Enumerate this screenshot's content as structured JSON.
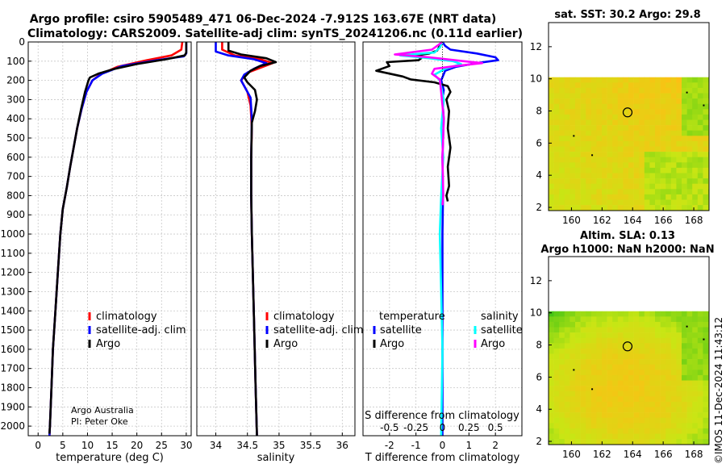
{
  "title_line1": "Argo profile: csiro 5905489_471 06-Dec-2024 -7.912S 163.67E (NRT data)",
  "title_line2": "Climatology: CARS2009. Satellite-adj clim: synTS_20241206.nc (0.11d earlier)",
  "credit": "©IMOS 11-Dec-2024 11:43:12",
  "operator_line1": "Argo Australia",
  "operator_line2": "PI: Peter Oke",
  "colors": {
    "climatology": "#ff0000",
    "satellite": "#0000ff",
    "argo": "#000000",
    "sat_salinity": "#00ffff",
    "argo_salinity": "#ff00ff"
  },
  "chart_data": [
    {
      "type": "line",
      "name": "temperature-profile",
      "xlabel": "temperature (deg C)",
      "xlim": [
        -2,
        31
      ],
      "xticks": [
        "0",
        "5",
        "10",
        "15",
        "20",
        "25",
        "30"
      ],
      "ylim": [
        0,
        2050
      ],
      "yticks": [
        "0",
        "100",
        "200",
        "300",
        "400",
        "500",
        "600",
        "700",
        "800",
        "900",
        "1000",
        "1100",
        "1200",
        "1300",
        "1400",
        "1500",
        "1600",
        "1700",
        "1800",
        "1900",
        "2000"
      ],
      "legend": [
        "climatology",
        "satellite-adj. clim",
        "Argo"
      ],
      "series": [
        {
          "name": "climatology",
          "color": "#ff0000",
          "points": [
            [
              29.2,
              0
            ],
            [
              29.0,
              40
            ],
            [
              27,
              70
            ],
            [
              22,
              95
            ],
            [
              16,
              130
            ],
            [
              12.5,
              170
            ],
            [
              11,
              200
            ],
            [
              9.8,
              260
            ],
            [
              8.8,
              350
            ],
            [
              7.9,
              450
            ],
            [
              7.2,
              550
            ],
            [
              6.5,
              650
            ],
            [
              5.8,
              760
            ],
            [
              5.0,
              870
            ],
            [
              4.5,
              1000
            ],
            [
              4.0,
              1200
            ],
            [
              3.5,
              1400
            ],
            [
              3.0,
              1600
            ],
            [
              2.7,
              1800
            ],
            [
              2.4,
              2000
            ],
            [
              2.3,
              2050
            ]
          ]
        },
        {
          "name": "satellite-adj. clim",
          "color": "#0000ff",
          "points": [
            [
              30.0,
              0
            ],
            [
              30.0,
              60
            ],
            [
              29.5,
              75
            ],
            [
              24,
              95
            ],
            [
              17,
              125
            ],
            [
              13,
              165
            ],
            [
              11,
              200
            ],
            [
              9.8,
              260
            ],
            [
              8.8,
              350
            ],
            [
              7.9,
              450
            ],
            [
              7.2,
              550
            ],
            [
              6.5,
              650
            ],
            [
              5.8,
              760
            ],
            [
              5.0,
              870
            ],
            [
              4.5,
              1000
            ],
            [
              4.0,
              1200
            ],
            [
              3.5,
              1400
            ],
            [
              3.0,
              1600
            ],
            [
              2.7,
              1800
            ],
            [
              2.4,
              2000
            ],
            [
              2.3,
              2050
            ]
          ]
        },
        {
          "name": "Argo",
          "color": "#000000",
          "points": [
            [
              30.0,
              0
            ],
            [
              30.0,
              55
            ],
            [
              29.7,
              70
            ],
            [
              26,
              90
            ],
            [
              20,
              115
            ],
            [
              15.5,
              140
            ],
            [
              12.2,
              165
            ],
            [
              10.5,
              185
            ],
            [
              10.2,
              200
            ],
            [
              9.5,
              260
            ],
            [
              8.7,
              350
            ],
            [
              7.9,
              450
            ],
            [
              7.2,
              550
            ],
            [
              6.5,
              650
            ],
            [
              5.8,
              760
            ],
            [
              5.0,
              870
            ],
            [
              4.5,
              1000
            ],
            [
              4.0,
              1200
            ],
            [
              3.5,
              1400
            ],
            [
              3.0,
              1600
            ],
            [
              2.7,
              1800
            ],
            [
              2.4,
              2000
            ],
            [
              2.3,
              2040
            ]
          ]
        }
      ]
    },
    {
      "type": "line",
      "name": "salinity-profile",
      "xlabel": "salinity",
      "xlim": [
        33.7,
        36.2
      ],
      "xticks": [
        "34",
        "34.5",
        "35",
        "35.5",
        "36"
      ],
      "ylim": [
        0,
        2050
      ],
      "legend": [
        "climatology",
        "satellite-adj. clim.",
        "Argo"
      ],
      "series": [
        {
          "name": "climatology",
          "color": "#ff0000",
          "points": [
            [
              34.1,
              0
            ],
            [
              34.1,
              40
            ],
            [
              34.3,
              70
            ],
            [
              34.7,
              90
            ],
            [
              34.9,
              110
            ],
            [
              34.7,
              135
            ],
            [
              34.5,
              160
            ],
            [
              34.4,
              200
            ],
            [
              34.5,
              260
            ],
            [
              34.55,
              330
            ],
            [
              34.57,
              450
            ],
            [
              34.56,
              600
            ],
            [
              34.56,
              800
            ],
            [
              34.57,
              1000
            ],
            [
              34.6,
              1400
            ],
            [
              34.63,
              1800
            ],
            [
              34.65,
              2050
            ]
          ]
        },
        {
          "name": "satellite-adj. clim",
          "color": "#0000ff",
          "points": [
            [
              34.0,
              0
            ],
            [
              34.0,
              50
            ],
            [
              34.2,
              70
            ],
            [
              34.6,
              90
            ],
            [
              34.8,
              110
            ],
            [
              34.6,
              140
            ],
            [
              34.45,
              170
            ],
            [
              34.4,
              200
            ],
            [
              34.45,
              230
            ],
            [
              34.55,
              290
            ],
            [
              34.57,
              400
            ],
            [
              34.56,
              600
            ],
            [
              34.56,
              800
            ],
            [
              34.57,
              1000
            ],
            [
              34.6,
              1400
            ],
            [
              34.63,
              1800
            ],
            [
              34.65,
              2050
            ]
          ]
        },
        {
          "name": "Argo",
          "color": "#000000",
          "points": [
            [
              34.2,
              0
            ],
            [
              34.2,
              45
            ],
            [
              34.4,
              65
            ],
            [
              34.8,
              85
            ],
            [
              34.95,
              105
            ],
            [
              34.7,
              125
            ],
            [
              34.55,
              150
            ],
            [
              34.45,
              185
            ],
            [
              34.5,
              210
            ],
            [
              34.62,
              250
            ],
            [
              34.65,
              300
            ],
            [
              34.62,
              360
            ],
            [
              34.57,
              420
            ],
            [
              34.56,
              600
            ],
            [
              34.56,
              800
            ],
            [
              34.57,
              1000
            ],
            [
              34.6,
              1400
            ],
            [
              34.63,
              1800
            ],
            [
              34.65,
              2050
            ]
          ]
        }
      ]
    },
    {
      "type": "line",
      "name": "difference-profile",
      "xlabel": "T difference from climatology",
      "xlabel_top": "S difference from climatology",
      "xlim": [
        -3,
        3
      ],
      "xticks": [
        "-2",
        "-1",
        "0",
        "1",
        "2"
      ],
      "xticks_top": [
        "-0.5",
        "-0.25",
        "0",
        "0.25",
        "0.5"
      ],
      "ylim": [
        0,
        2050
      ],
      "legend_titles": [
        "temperature",
        "salinity"
      ],
      "legend": [
        "satellite",
        "Argo",
        "satellite",
        "Argo"
      ],
      "series": [
        {
          "name": "temperature satellite",
          "color": "#0000ff",
          "points": [
            [
              0,
              0
            ],
            [
              0.1,
              20
            ],
            [
              0.3,
              40
            ],
            [
              1.3,
              60
            ],
            [
              2.0,
              80
            ],
            [
              2.1,
              95
            ],
            [
              1.3,
              110
            ],
            [
              0.5,
              130
            ],
            [
              0.1,
              150
            ],
            [
              -0.05,
              200
            ],
            [
              0.05,
              250
            ],
            [
              0,
              300
            ],
            [
              0.05,
              400
            ],
            [
              0,
              600
            ],
            [
              0.02,
              800
            ],
            [
              0,
              1000
            ],
            [
              0,
              1500
            ],
            [
              0,
              2050
            ]
          ]
        },
        {
          "name": "temperature Argo",
          "color": "#000000",
          "points": [
            [
              0,
              0
            ],
            [
              -0.1,
              20
            ],
            [
              -0.2,
              45
            ],
            [
              -0.5,
              60
            ],
            [
              -1.0,
              70
            ],
            [
              -0.8,
              85
            ],
            [
              -0.9,
              95
            ],
            [
              -2.1,
              105
            ],
            [
              -2.0,
              125
            ],
            [
              -2.5,
              150
            ],
            [
              -1.5,
              180
            ],
            [
              -1.2,
              195
            ],
            [
              -0.3,
              210
            ],
            [
              0.2,
              230
            ],
            [
              0.3,
              260
            ],
            [
              0.15,
              300
            ],
            [
              0.25,
              360
            ],
            [
              0.2,
              450
            ],
            [
              0.3,
              550
            ],
            [
              0.2,
              650
            ],
            [
              0.25,
              750
            ],
            [
              0.15,
              800
            ],
            [
              0.2,
              830
            ]
          ]
        },
        {
          "name": "salinity satellite",
          "color": "#00ffff",
          "points": [
            [
              0,
              0
            ],
            [
              -0.1,
              30
            ],
            [
              -0.3,
              55
            ],
            [
              -1.6,
              70
            ],
            [
              -0.5,
              85
            ],
            [
              0.4,
              100
            ],
            [
              0.7,
              115
            ],
            [
              0.1,
              140
            ],
            [
              -0.3,
              170
            ],
            [
              -0.1,
              200
            ],
            [
              0.05,
              300
            ],
            [
              -0.05,
              450
            ],
            [
              0.03,
              600
            ],
            [
              -0.05,
              800
            ],
            [
              -0.1,
              1000
            ],
            [
              -0.05,
              1300
            ],
            [
              0,
              1600
            ],
            [
              -0.05,
              2050
            ]
          ]
        },
        {
          "name": "salinity Argo",
          "color": "#ff00ff",
          "points": [
            [
              0,
              0
            ],
            [
              -0.4,
              40
            ],
            [
              -1.8,
              65
            ],
            [
              -0.5,
              80
            ],
            [
              0.8,
              100
            ],
            [
              1.5,
              110
            ],
            [
              0.5,
              125
            ],
            [
              -0.3,
              140
            ],
            [
              -0.4,
              165
            ],
            [
              -0.1,
              195
            ],
            [
              -0.05,
              260
            ],
            [
              0.05,
              400
            ],
            [
              0,
              600
            ],
            [
              0.03,
              800
            ],
            [
              0,
              850
            ]
          ]
        }
      ]
    },
    {
      "type": "heatmap",
      "name": "sst-map",
      "title": "sat. SST: 30.2 Argo: 29.8",
      "xlim": [
        158.5,
        169
      ],
      "ylim": [
        1.8,
        13.5
      ],
      "xticks": [
        "160",
        "162",
        "164",
        "166",
        "168"
      ],
      "yticks": [
        "2",
        "4",
        "6",
        "8",
        "10",
        "12"
      ],
      "data_top": 10.1,
      "marker": [
        163.67,
        7.912
      ]
    },
    {
      "type": "heatmap",
      "name": "sla-map",
      "title_line1": "Altim. SLA: 0.13",
      "title_line2": "Argo h1000: NaN h2000: NaN",
      "xlim": [
        158.5,
        169
      ],
      "ylim": [
        1.8,
        13.5
      ],
      "xticks": [
        "160",
        "162",
        "164",
        "166",
        "168"
      ],
      "yticks": [
        "2",
        "4",
        "6",
        "8",
        "10",
        "12"
      ],
      "data_top": 10.1,
      "marker": [
        163.67,
        7.912
      ]
    }
  ]
}
